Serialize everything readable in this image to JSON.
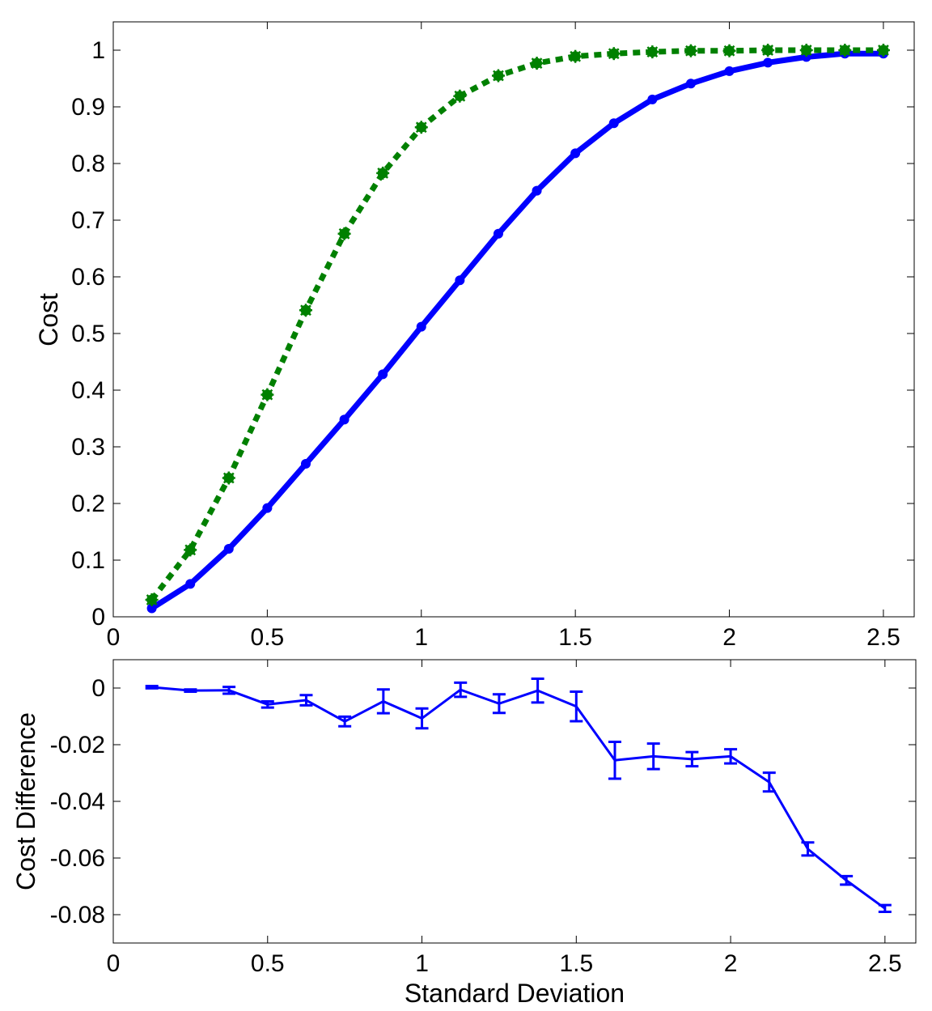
{
  "chart_data": [
    {
      "type": "line",
      "title": "",
      "xlabel": "",
      "ylabel": "Cost",
      "xlim": [
        0,
        2.6
      ],
      "ylim": [
        0,
        1.05
      ],
      "xticks": [
        0,
        0.5,
        1,
        1.5,
        2,
        2.5
      ],
      "xtick_labels": [
        "0",
        "0.5",
        "1",
        "1.5",
        "2",
        "2.5"
      ],
      "yticks": [
        0,
        0.1,
        0.2,
        0.3,
        0.4,
        0.5,
        0.6,
        0.7,
        0.8,
        0.9,
        1
      ],
      "ytick_labels": [
        "0",
        "0.1",
        "0.2",
        "0.3",
        "0.4",
        "0.5",
        "0.6",
        "0.7",
        "0.8",
        "0.9",
        "1"
      ],
      "grid": false,
      "x": [
        0.125,
        0.25,
        0.375,
        0.5,
        0.625,
        0.75,
        0.875,
        1.0,
        1.125,
        1.25,
        1.375,
        1.5,
        1.625,
        1.75,
        1.875,
        2.0,
        2.125,
        2.25,
        2.375,
        2.5
      ],
      "series": [
        {
          "name": "blue-solid",
          "color": "#0000ff",
          "style": "solid",
          "values": [
            0.015,
            0.058,
            0.12,
            0.192,
            0.27,
            0.348,
            0.428,
            0.512,
            0.594,
            0.676,
            0.752,
            0.818,
            0.871,
            0.913,
            0.941,
            0.963,
            0.978,
            0.988,
            0.994,
            0.994
          ]
        },
        {
          "name": "green-dotted",
          "color": "#008000",
          "style": "dotted",
          "values": [
            0.03,
            0.118,
            0.245,
            0.392,
            0.541,
            0.676,
            0.783,
            0.864,
            0.919,
            0.955,
            0.977,
            0.989,
            0.994,
            0.997,
            0.999,
            0.999,
            1.0,
            1.0,
            1.0,
            1.0
          ]
        }
      ]
    },
    {
      "type": "line",
      "title": "",
      "xlabel": "Standard Deviation",
      "ylabel": "Cost Difference",
      "xlim": [
        0,
        2.6
      ],
      "ylim": [
        -0.09,
        0.01
      ],
      "xticks": [
        0,
        0.5,
        1,
        1.5,
        2,
        2.5
      ],
      "xtick_labels": [
        "0",
        "0.5",
        "1",
        "1.5",
        "2",
        "2.5"
      ],
      "yticks": [
        0,
        -0.02,
        -0.04,
        -0.06,
        -0.08
      ],
      "ytick_labels": [
        "0",
        "-0.02",
        "-0.04",
        "-0.06",
        "-0.08"
      ],
      "grid": false,
      "x": [
        0.125,
        0.25,
        0.375,
        0.5,
        0.625,
        0.75,
        0.875,
        1.0,
        1.125,
        1.25,
        1.375,
        1.5,
        1.625,
        1.75,
        1.875,
        2.0,
        2.125,
        2.25,
        2.375,
        2.5
      ],
      "series": [
        {
          "name": "cost-difference",
          "color": "#0000ff",
          "style": "solid",
          "values": [
            0.0003,
            -0.0009,
            -0.0008,
            -0.0058,
            -0.0043,
            -0.0118,
            -0.0047,
            -0.0107,
            -0.0006,
            -0.0055,
            -0.0009,
            -0.0065,
            -0.0255,
            -0.0241,
            -0.0251,
            -0.0241,
            -0.0332,
            -0.0568,
            -0.0679,
            -0.0778
          ],
          "error": [
            0.0004,
            0.0004,
            0.0012,
            0.0011,
            0.0018,
            0.0017,
            0.0042,
            0.0035,
            0.0025,
            0.0033,
            0.0042,
            0.0052,
            0.0065,
            0.0045,
            0.0025,
            0.0025,
            0.0033,
            0.0023,
            0.0015,
            0.0012
          ]
        }
      ]
    }
  ]
}
